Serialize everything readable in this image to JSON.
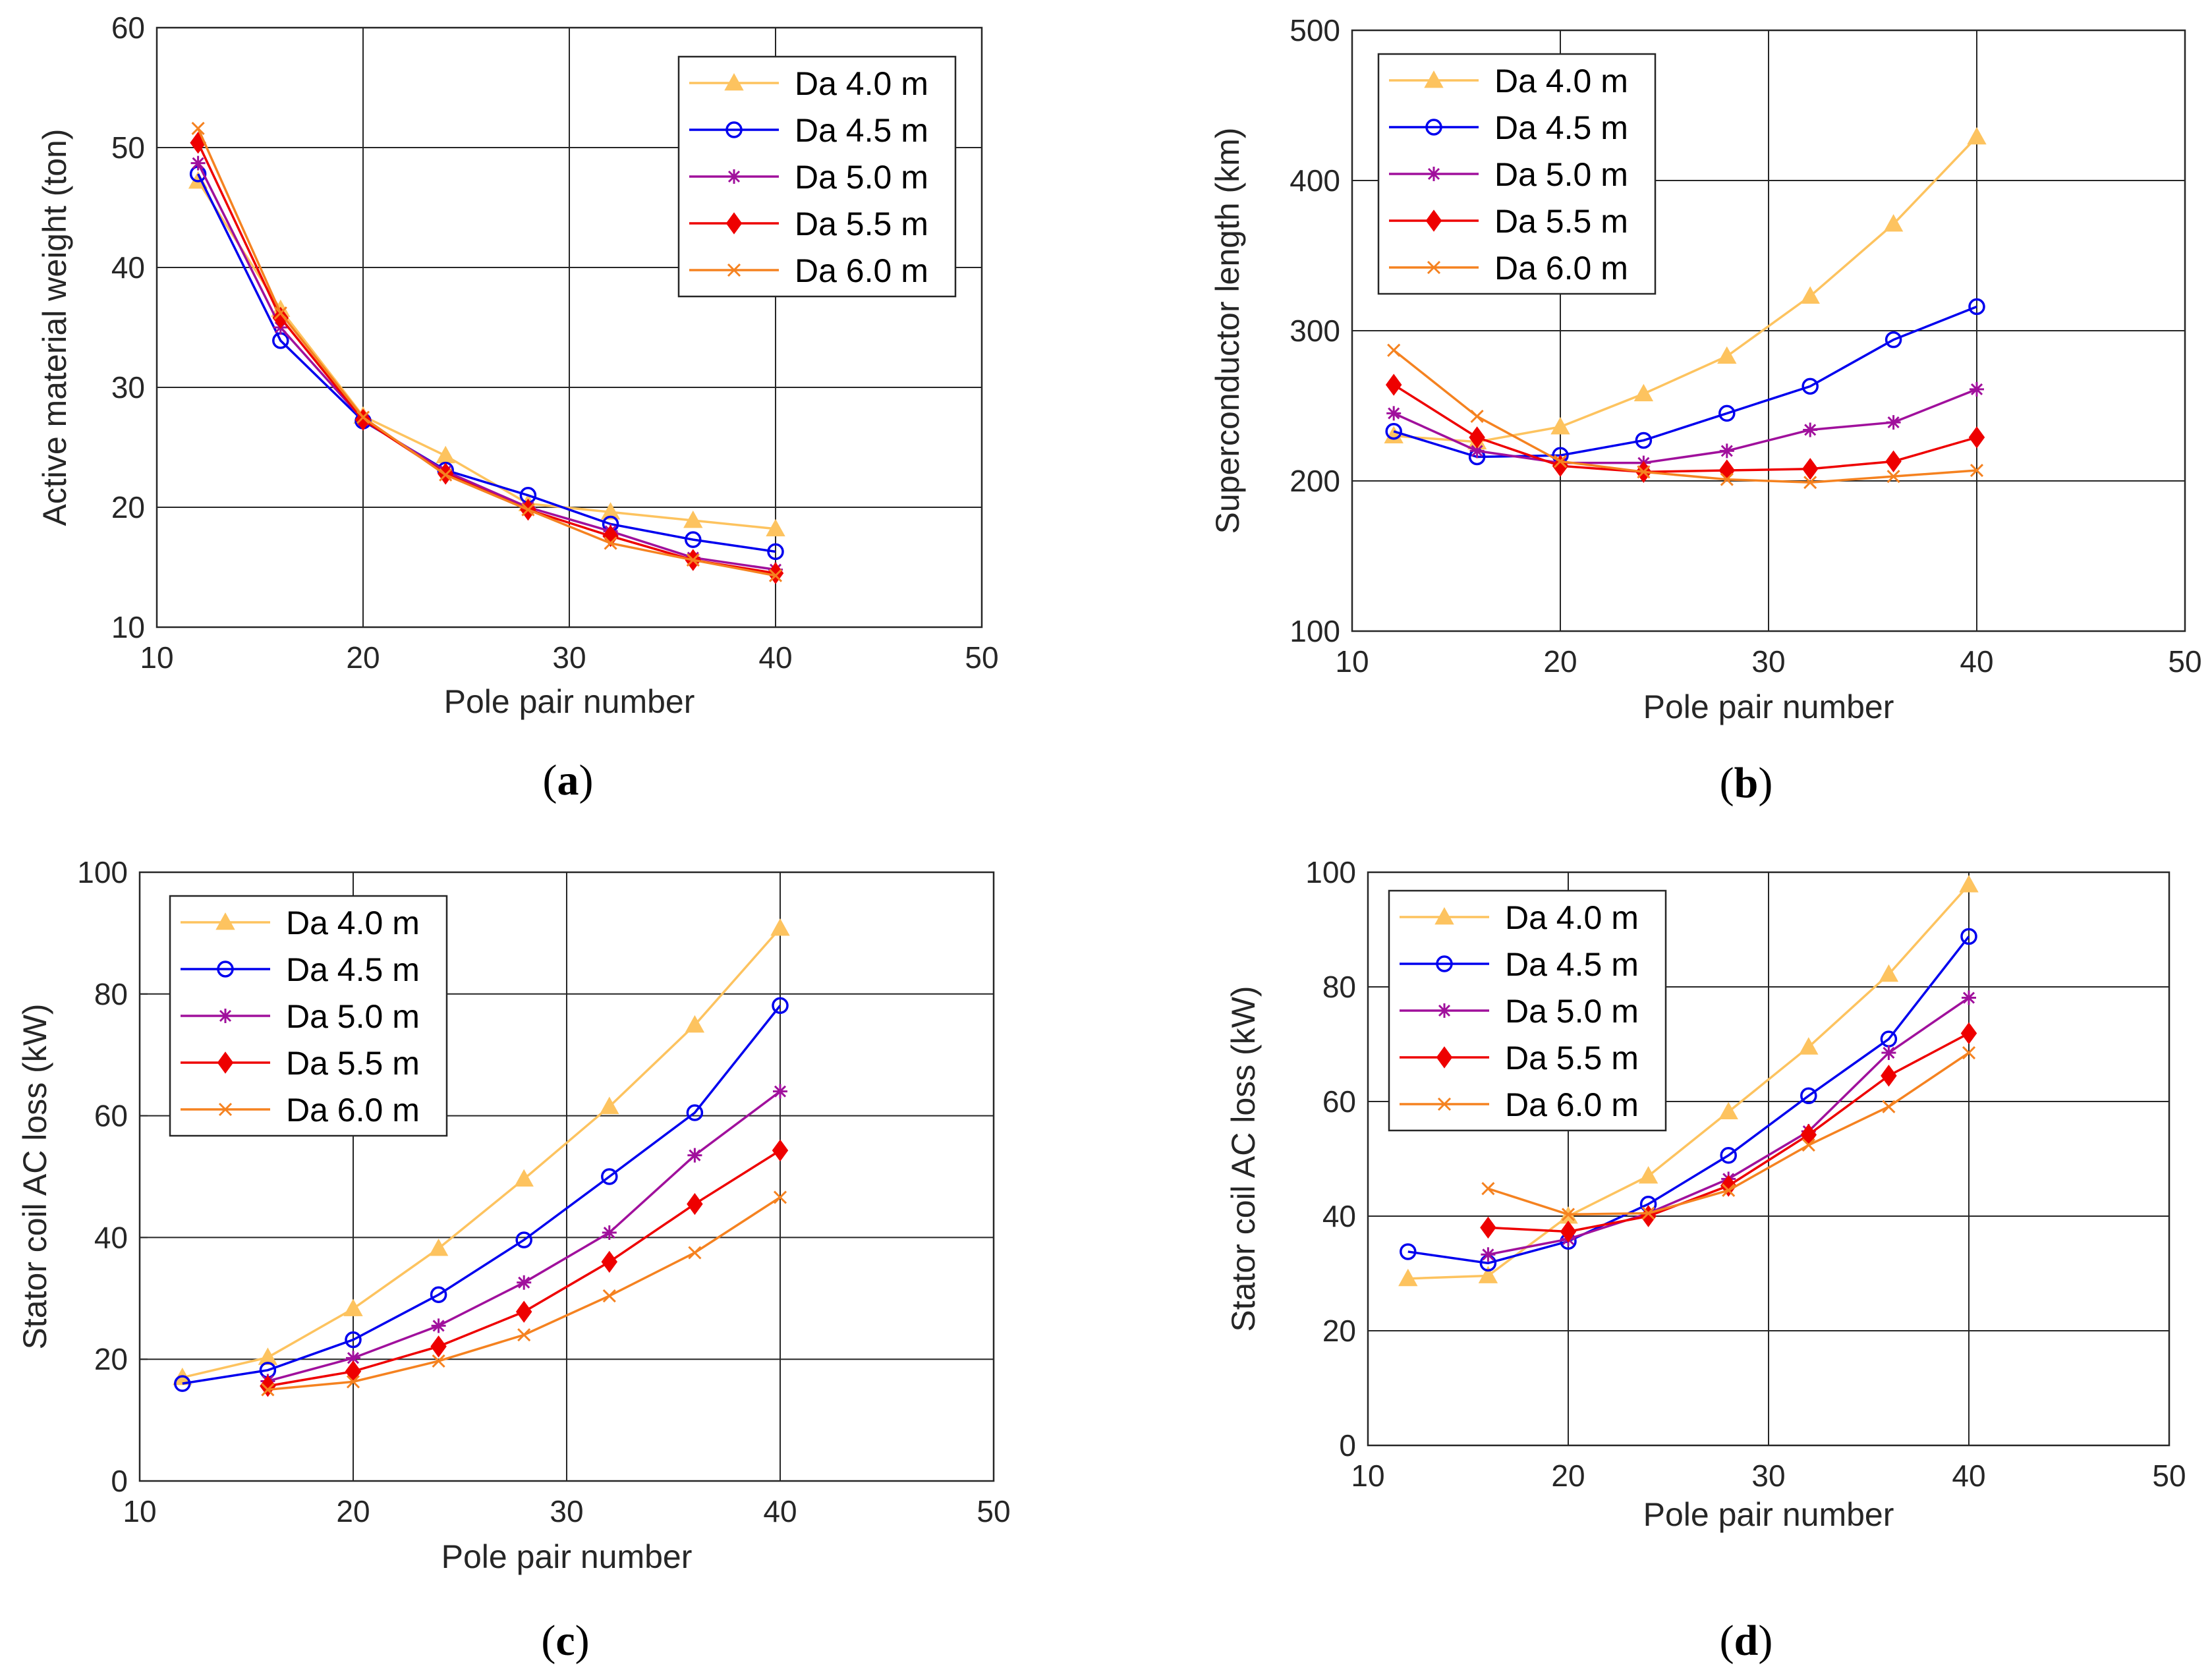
{
  "series_styles": [
    {
      "name": "Da 4.0 m",
      "color": "#FDC35F",
      "marker": "triangle"
    },
    {
      "name": "Da 4.5 m",
      "color": "#0000EE",
      "marker": "circle"
    },
    {
      "name": "Da 5.0 m",
      "color": "#A0109C",
      "marker": "asterisk"
    },
    {
      "name": "Da 5.5 m",
      "color": "#EE0000",
      "marker": "diamond"
    },
    {
      "name": "Da 6.0 m",
      "color": "#F58220",
      "marker": "x"
    }
  ],
  "chart_data": [
    {
      "id": "a",
      "type": "line",
      "caption": "(a)",
      "caption_parts": [
        "(",
        "a",
        ")"
      ],
      "xlabel": "Pole pair number",
      "ylabel": "Active material weight (ton)",
      "xlim": [
        10,
        50
      ],
      "ylim": [
        10,
        60
      ],
      "xticks": [
        10,
        20,
        30,
        40,
        50
      ],
      "yticks": [
        10,
        20,
        30,
        40,
        50,
        60
      ],
      "grid": true,
      "legend_position": "top-right",
      "series": [
        {
          "name": "Da 4.0 m",
          "x": [
            12,
            16,
            20,
            24,
            28,
            32,
            36,
            40
          ],
          "y": [
            47.2,
            36.5,
            27.6,
            24.3,
            20.3,
            19.6,
            18.9,
            18.2
          ]
        },
        {
          "name": "Da 4.5 m",
          "x": [
            12,
            16,
            20,
            24,
            28,
            32,
            36,
            40
          ],
          "y": [
            47.8,
            33.9,
            27.2,
            23.1,
            21.0,
            18.6,
            17.3,
            16.3
          ]
        },
        {
          "name": "Da 5.0 m",
          "x": [
            12,
            16,
            20,
            24,
            28,
            32,
            36,
            40
          ],
          "y": [
            48.7,
            35.0,
            27.3,
            23.0,
            20.0,
            18.0,
            15.8,
            14.8
          ]
        },
        {
          "name": "Da 5.5 m",
          "x": [
            12,
            16,
            20,
            24,
            28,
            32,
            36,
            40
          ],
          "y": [
            50.4,
            35.8,
            27.3,
            22.8,
            19.8,
            17.6,
            15.6,
            14.5
          ]
        },
        {
          "name": "Da 6.0 m",
          "x": [
            12,
            16,
            20,
            24,
            28,
            32,
            36,
            40
          ],
          "y": [
            51.6,
            36.2,
            27.5,
            22.7,
            19.8,
            17.0,
            15.6,
            14.3
          ]
        }
      ]
    },
    {
      "id": "b",
      "type": "line",
      "caption": "(b)",
      "caption_parts": [
        "(",
        "b",
        ")"
      ],
      "xlabel": "Pole pair number",
      "ylabel": "Superconductor length (km)",
      "xlim": [
        10,
        50
      ],
      "ylim": [
        100,
        500
      ],
      "xticks": [
        10,
        20,
        30,
        40,
        50
      ],
      "yticks": [
        100,
        200,
        300,
        400,
        500
      ],
      "grid": true,
      "legend_position": "top-left",
      "series": [
        {
          "name": "Da 4.0 m",
          "x": [
            12,
            16,
            20,
            24,
            28,
            32,
            36,
            40
          ],
          "y": [
            230,
            226,
            236,
            258,
            283,
            323,
            371,
            429
          ]
        },
        {
          "name": "Da 4.5 m",
          "x": [
            12,
            16,
            20,
            24,
            28,
            32,
            36,
            40
          ],
          "y": [
            233,
            216,
            217,
            227,
            245,
            263,
            294,
            316
          ]
        },
        {
          "name": "Da 5.0 m",
          "x": [
            12,
            16,
            20,
            24,
            28,
            32,
            36,
            40
          ],
          "y": [
            245,
            220,
            212,
            212,
            220,
            234,
            239,
            261
          ]
        },
        {
          "name": "Da 5.5 m",
          "x": [
            12,
            16,
            20,
            24,
            28,
            32,
            36,
            40
          ],
          "y": [
            264,
            229,
            210,
            206,
            207,
            208,
            213,
            229
          ]
        },
        {
          "name": "Da 6.0 m",
          "x": [
            12,
            16,
            20,
            24,
            28,
            32,
            36,
            40
          ],
          "y": [
            287,
            243,
            213,
            206,
            201,
            199,
            203,
            207
          ]
        }
      ]
    },
    {
      "id": "c",
      "type": "line",
      "caption": "(c)",
      "caption_parts": [
        "(",
        "c",
        ")"
      ],
      "xlabel": "Pole pair number",
      "ylabel": "Stator coil AC loss (kW)",
      "xlim": [
        10,
        50
      ],
      "ylim": [
        0,
        100
      ],
      "xticks": [
        10,
        20,
        30,
        40,
        50
      ],
      "yticks": [
        0,
        20,
        40,
        60,
        80,
        100
      ],
      "grid": true,
      "legend_position": "top-left",
      "series": [
        {
          "name": "Da 4.0 m",
          "x": [
            12,
            16,
            20,
            24,
            28,
            32,
            36,
            40
          ],
          "y": [
            17.0,
            20.3,
            28.3,
            38.2,
            49.6,
            61.5,
            74.9,
            90.8
          ]
        },
        {
          "name": "Da 4.5 m",
          "x": [
            12,
            16,
            20,
            24,
            28,
            32,
            36,
            40
          ],
          "y": [
            16.0,
            18.2,
            23.2,
            30.6,
            39.6,
            50.0,
            60.5,
            78.1
          ]
        },
        {
          "name": "Da 5.0 m",
          "x": [
            16,
            20,
            24,
            28,
            32,
            36,
            40
          ],
          "y": [
            16.4,
            20.2,
            25.5,
            32.6,
            40.8,
            53.5,
            64.0
          ]
        },
        {
          "name": "Da 5.5 m",
          "x": [
            16,
            20,
            24,
            28,
            32,
            36,
            40
          ],
          "y": [
            15.6,
            18.0,
            22.1,
            27.8,
            36.0,
            45.5,
            54.3
          ]
        },
        {
          "name": "Da 6.0 m",
          "x": [
            16,
            20,
            24,
            28,
            32,
            36,
            40
          ],
          "y": [
            15.0,
            16.3,
            19.7,
            24.0,
            30.4,
            37.5,
            46.6
          ]
        }
      ]
    },
    {
      "id": "d",
      "type": "line",
      "caption": "(d)",
      "caption_parts": [
        "(",
        "d",
        ")"
      ],
      "xlabel": "Pole pair number",
      "ylabel": "Stator coil AC loss (kW)",
      "xlim": [
        10,
        50
      ],
      "ylim": [
        0,
        100
      ],
      "xticks": [
        10,
        20,
        30,
        40,
        50
      ],
      "yticks": [
        0,
        20,
        40,
        60,
        80,
        100
      ],
      "grid": true,
      "legend_position": "top-left",
      "series": [
        {
          "name": "Da 4.0 m",
          "x": [
            12,
            16,
            20,
            24,
            28,
            32,
            36,
            40
          ],
          "y": [
            29.1,
            29.6,
            40.0,
            47.0,
            58.2,
            69.5,
            82.2,
            97.8
          ]
        },
        {
          "name": "Da 4.5 m",
          "x": [
            12,
            16,
            20,
            24,
            28,
            32,
            36,
            40
          ],
          "y": [
            33.8,
            31.8,
            35.6,
            42.1,
            50.6,
            61.0,
            70.9,
            88.8
          ]
        },
        {
          "name": "Da 5.0 m",
          "x": [
            16,
            20,
            24,
            28,
            32,
            36,
            40
          ],
          "y": [
            33.3,
            36.0,
            40.5,
            46.5,
            54.8,
            68.5,
            78.1
          ]
        },
        {
          "name": "Da 5.5 m",
          "x": [
            16,
            20,
            24,
            28,
            32,
            36,
            40
          ],
          "y": [
            38.0,
            37.3,
            40.0,
            45.3,
            54.2,
            64.5,
            71.9
          ]
        },
        {
          "name": "Da 6.0 m",
          "x": [
            16,
            20,
            24,
            28,
            32,
            36,
            40
          ],
          "y": [
            44.8,
            40.3,
            40.5,
            44.5,
            52.4,
            59.1,
            68.5
          ]
        }
      ]
    }
  ]
}
